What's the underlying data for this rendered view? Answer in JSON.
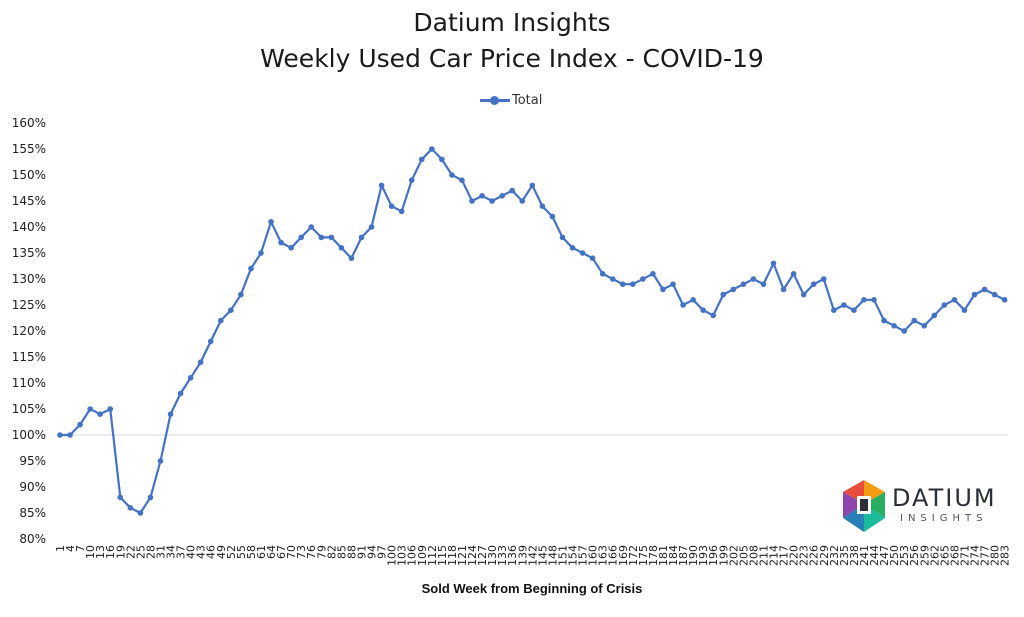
{
  "header": {
    "title_line1": "Datium Insights",
    "title_line2": "Weekly Used Car Price Index - COVID-19"
  },
  "legend": {
    "label": "Total",
    "color": "#4472c4"
  },
  "logo": {
    "word": "DATIUM",
    "sub": "INSIGHTS"
  },
  "chart_data": {
    "type": "line",
    "title": "Datium Insights Weekly Used Car Price Index - COVID-19",
    "xlabel": "Sold Week from Beginning of Crisis",
    "ylabel": "",
    "ylim": [
      80,
      160
    ],
    "y_ticks": [
      "80%",
      "85%",
      "90%",
      "95%",
      "100%",
      "105%",
      "110%",
      "115%",
      "120%",
      "125%",
      "130%",
      "135%",
      "140%",
      "145%",
      "150%",
      "155%",
      "160%"
    ],
    "x_range": [
      1,
      284
    ],
    "x_tick_labels": [
      "1",
      "4",
      "7",
      "10",
      "13",
      "16",
      "19",
      "22",
      "25",
      "28",
      "31",
      "34",
      "37",
      "40",
      "43",
      "46",
      "49",
      "52",
      "55",
      "58",
      "61",
      "64",
      "67",
      "70",
      "73",
      "76",
      "79",
      "82",
      "85",
      "88",
      "91",
      "94",
      "97",
      "100",
      "103",
      "106",
      "109",
      "112",
      "115",
      "118",
      "121",
      "124",
      "127",
      "130",
      "133",
      "136",
      "139",
      "142",
      "145",
      "148",
      "151",
      "154",
      "157",
      "160",
      "163",
      "166",
      "169",
      "172",
      "175",
      "178",
      "181",
      "184",
      "187",
      "190",
      "193",
      "196",
      "199",
      "202",
      "205",
      "208",
      "211",
      "214",
      "217",
      "220",
      "223",
      "226",
      "229",
      "232",
      "235",
      "238",
      "241",
      "244",
      "247",
      "250",
      "253",
      "256",
      "259",
      "262",
      "265",
      "268",
      "271",
      "274",
      "277",
      "280",
      "283"
    ],
    "reference_line": 100,
    "series": [
      {
        "name": "Total",
        "color": "#4472c4",
        "x": [
          1,
          4,
          7,
          10,
          13,
          16,
          19,
          22,
          25,
          28,
          31,
          34,
          37,
          40,
          43,
          46,
          49,
          52,
          55,
          58,
          61,
          64,
          67,
          70,
          73,
          76,
          79,
          82,
          85,
          88,
          91,
          94,
          97,
          100,
          103,
          106,
          109,
          112,
          115,
          118,
          121,
          124,
          127,
          130,
          133,
          136,
          139,
          142,
          145,
          148,
          151,
          154,
          157,
          160,
          163,
          166,
          169,
          172,
          175,
          178,
          181,
          184,
          187,
          190,
          193,
          196,
          199,
          202,
          205,
          208,
          211,
          214,
          217,
          220,
          223,
          226,
          229,
          232,
          235,
          238,
          241,
          244,
          247,
          250,
          253,
          256,
          259,
          262,
          265,
          268,
          271,
          274,
          277,
          280,
          283
        ],
        "values": [
          100,
          100,
          102,
          105,
          104,
          105,
          88,
          86,
          85,
          88,
          95,
          104,
          108,
          111,
          114,
          118,
          122,
          124,
          127,
          132,
          135,
          141,
          137,
          136,
          138,
          140,
          138,
          138,
          136,
          134,
          138,
          140,
          148,
          144,
          143,
          149,
          153,
          155,
          153,
          150,
          149,
          145,
          146,
          145,
          146,
          147,
          145,
          148,
          144,
          142,
          138,
          136,
          135,
          134,
          131,
          130,
          129,
          129,
          130,
          131,
          128,
          129,
          125,
          126,
          124,
          123,
          127,
          128,
          129,
          130,
          129,
          133,
          128,
          131,
          127,
          129,
          130,
          124,
          125,
          124,
          126,
          126,
          122,
          121,
          120,
          122,
          121,
          123,
          125,
          126,
          124,
          127,
          128,
          127,
          126
        ]
      }
    ]
  }
}
